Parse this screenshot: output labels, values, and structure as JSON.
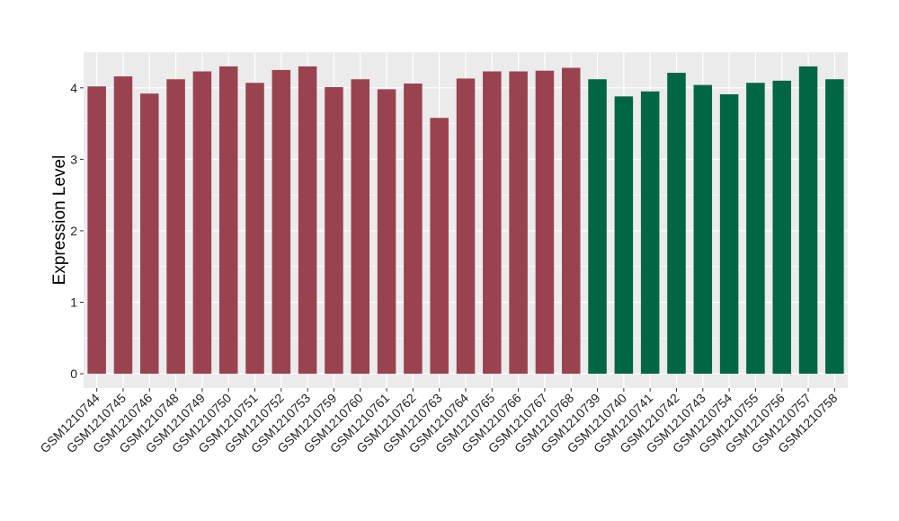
{
  "chart_data": {
    "type": "bar",
    "title": "",
    "xlabel": "",
    "ylabel": "Expression Level",
    "ylim": [
      -0.2,
      4.5
    ],
    "yticks": [
      0,
      1,
      2,
      3,
      4
    ],
    "grid": true,
    "legend": "none",
    "colors": {
      "group_1": "#9a4350",
      "group_2": "#006644",
      "panel_background": "#ebebeb",
      "grid": "#ffffff"
    },
    "categories": [
      "GSM1210744",
      "GSM1210745",
      "GSM1210746",
      "GSM1210748",
      "GSM1210749",
      "GSM1210750",
      "GSM1210751",
      "GSM1210752",
      "GSM1210753",
      "GSM1210759",
      "GSM1210760",
      "GSM1210761",
      "GSM1210762",
      "GSM1210763",
      "GSM1210764",
      "GSM1210765",
      "GSM1210766",
      "GSM1210767",
      "GSM1210768",
      "GSM1210739",
      "GSM1210740",
      "GSM1210741",
      "GSM1210742",
      "GSM1210743",
      "GSM1210754",
      "GSM1210755",
      "GSM1210756",
      "GSM1210757",
      "GSM1210758"
    ],
    "values": [
      4.02,
      4.16,
      3.92,
      4.12,
      4.23,
      4.3,
      4.07,
      4.25,
      4.3,
      4.01,
      4.12,
      3.98,
      4.06,
      3.58,
      4.13,
      4.23,
      4.23,
      4.24,
      4.28,
      4.12,
      3.88,
      3.95,
      4.21,
      4.04,
      3.91,
      4.07,
      4.1,
      4.3,
      4.12
    ],
    "groups": [
      1,
      1,
      1,
      1,
      1,
      1,
      1,
      1,
      1,
      1,
      1,
      1,
      1,
      1,
      1,
      1,
      1,
      1,
      1,
      2,
      2,
      2,
      2,
      2,
      2,
      2,
      2,
      2,
      2
    ]
  }
}
